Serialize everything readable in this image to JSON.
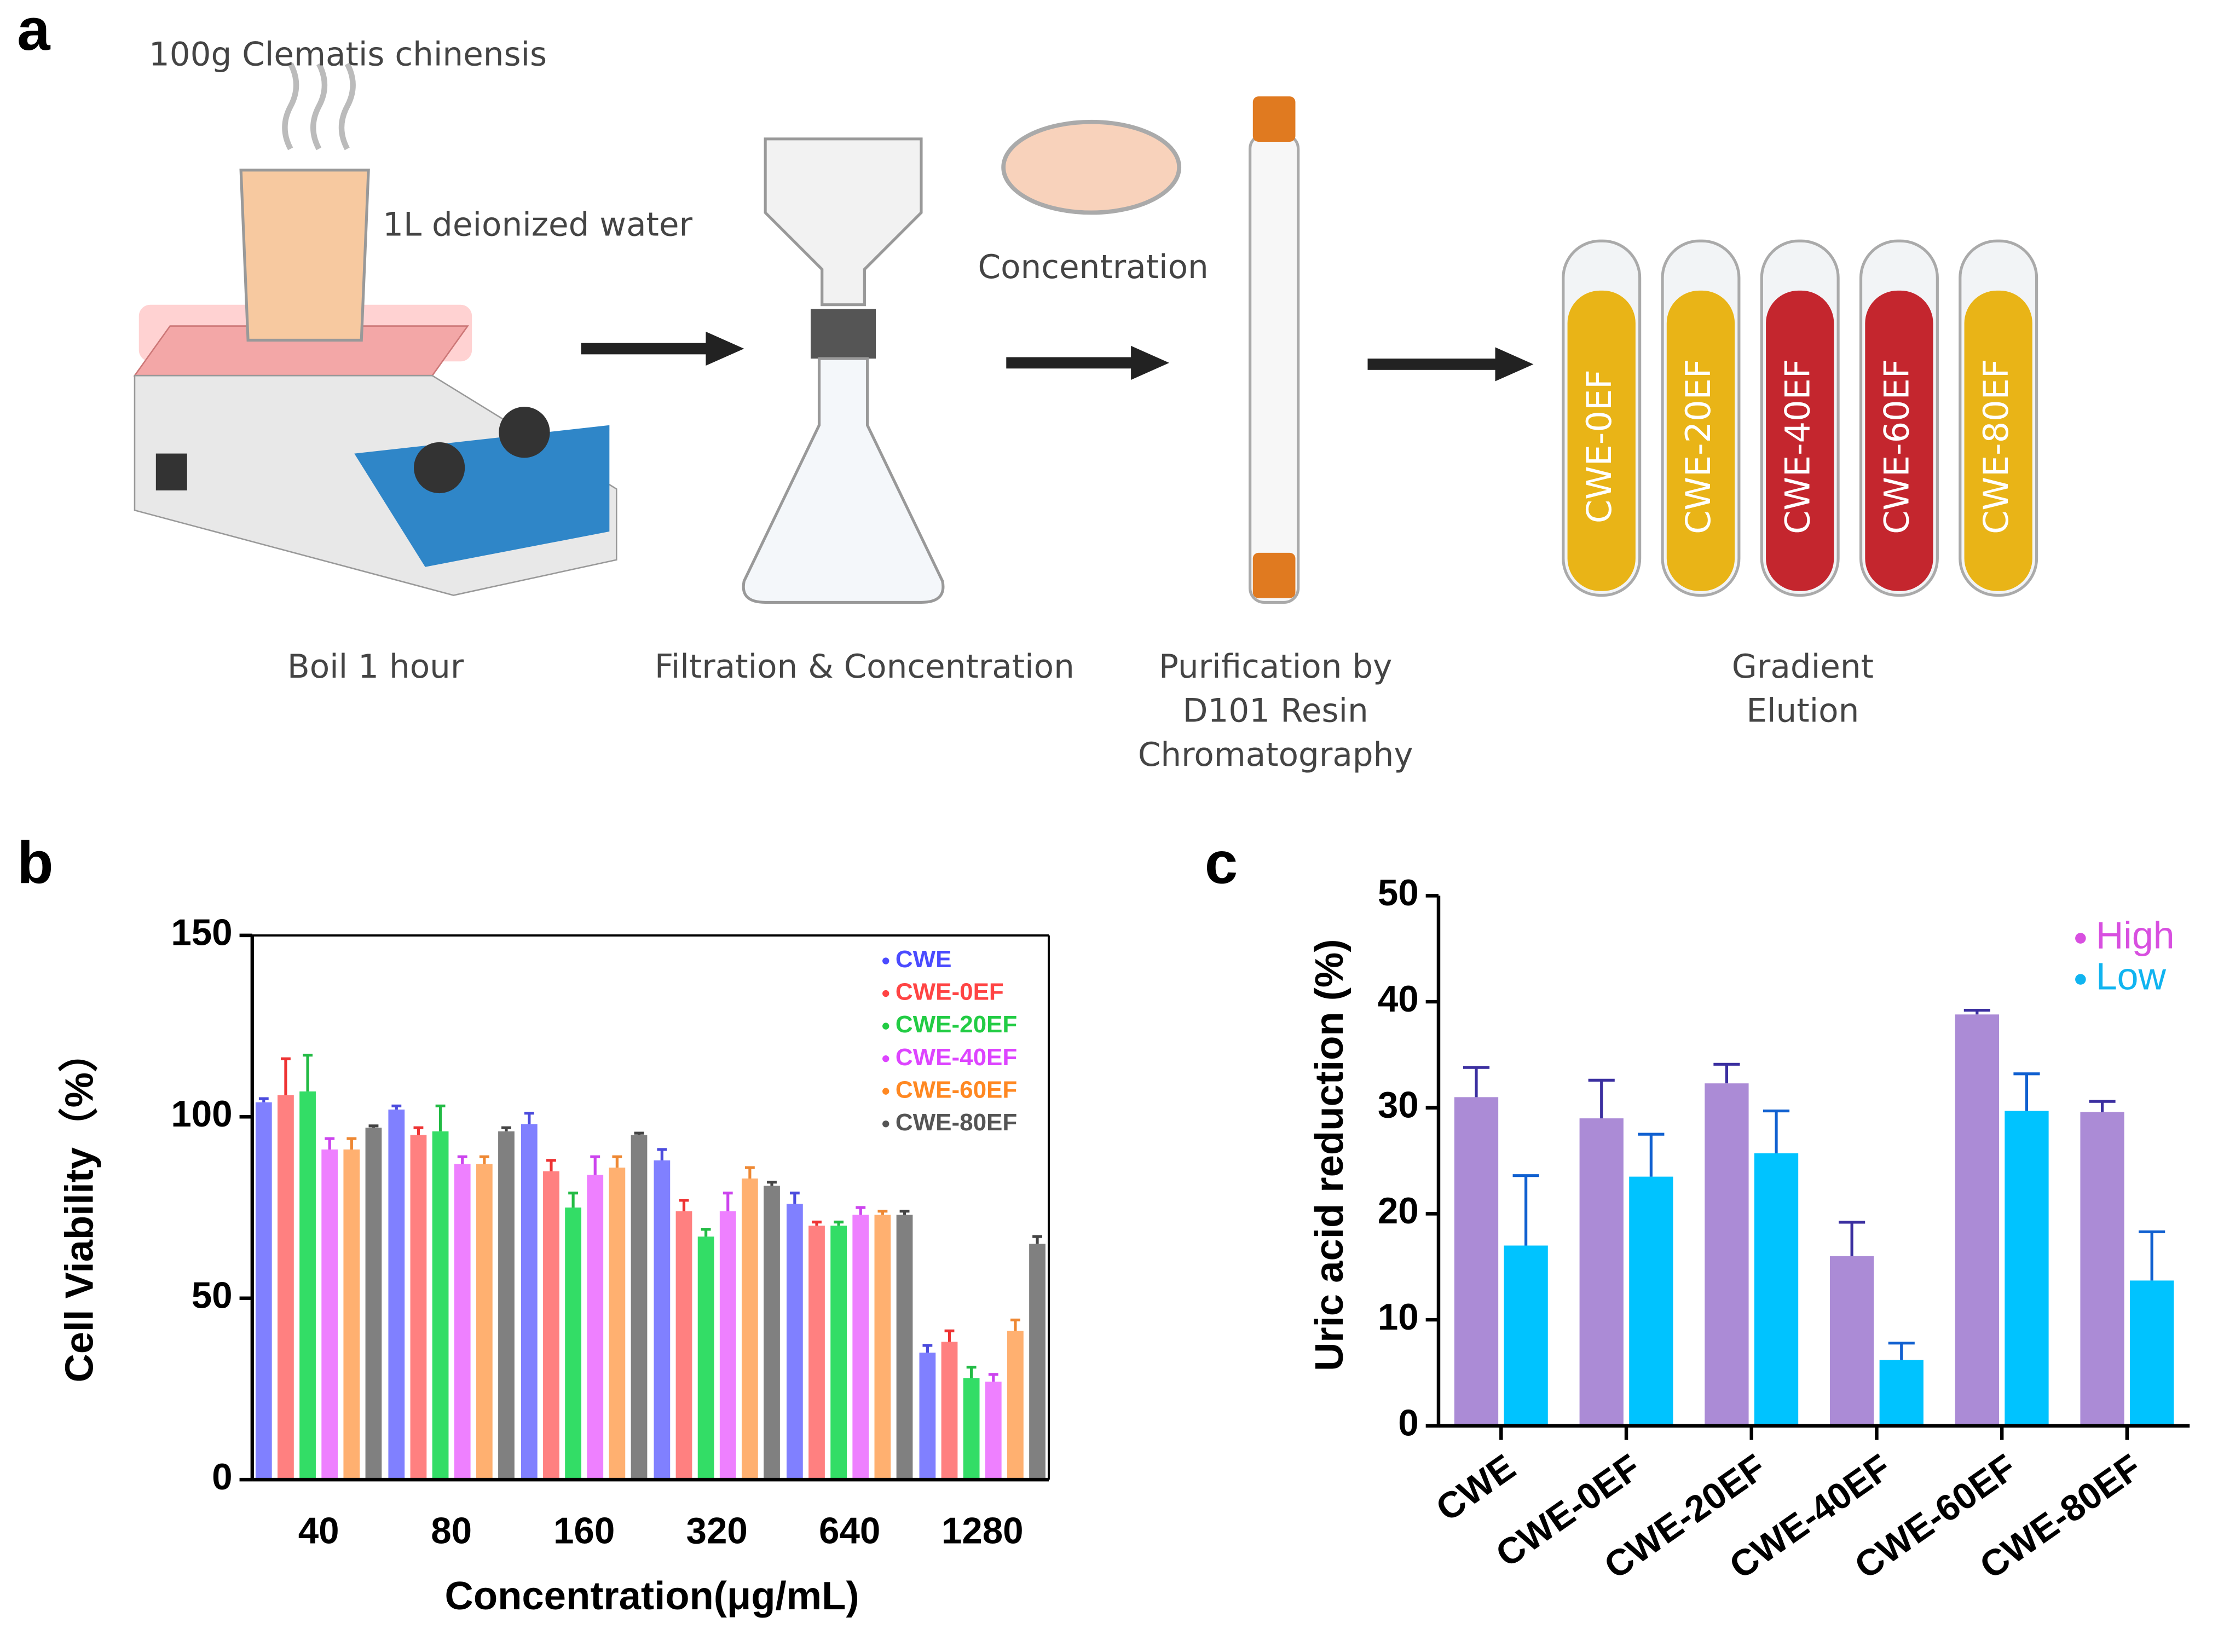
{
  "panel_labels": [
    "a",
    "b",
    "c"
  ],
  "diagram": {
    "ingredient": "100g Clematis chinensis",
    "solvent": "1L deionized water",
    "concentration_label": "Concentration",
    "steps": [
      [
        "Boil 1 hour"
      ],
      [
        "Filtration & Concentration"
      ],
      [
        "Purification by",
        "D101 Resin",
        "Chromatography"
      ],
      [
        "Gradient",
        "Elution"
      ]
    ],
    "tubes": [
      {
        "label": "CWE-0EF",
        "color": "#e9b417"
      },
      {
        "label": "CWE-20EF",
        "color": "#e9b417"
      },
      {
        "label": "CWE-40EF",
        "color": "#c4262e"
      },
      {
        "label": "CWE-60EF",
        "color": "#c4262e"
      },
      {
        "label": "CWE-80EF",
        "color": "#e9b417"
      }
    ]
  },
  "chart_data": [
    {
      "type": "bar",
      "x_label": "Concentration(μg/mL)",
      "y_label": "Cell Viability（%）",
      "categories": [
        "40",
        "80",
        "160",
        "320",
        "640",
        "1280"
      ],
      "ylim": [
        0,
        150
      ],
      "yticks": [
        0,
        50,
        100,
        150
      ],
      "legend": "upper right",
      "series": [
        {
          "name": "CWE",
          "color": "#8080ff",
          "legend_color": "#4b4bff",
          "error_color": "#4b4bdd",
          "values": [
            104,
            102,
            98,
            88,
            76,
            35
          ],
          "errors": [
            1,
            1,
            3,
            3,
            3,
            2
          ]
        },
        {
          "name": "CWE-0EF",
          "color": "#ff8080",
          "legend_color": "#ff4444",
          "error_color": "#ee3333",
          "values": [
            106,
            95,
            85,
            74,
            70,
            38
          ],
          "errors": [
            10,
            2,
            3,
            3,
            1,
            3
          ]
        },
        {
          "name": "CWE-20EF",
          "color": "#33dd66",
          "legend_color": "#22cc44",
          "error_color": "#22bb44",
          "values": [
            107,
            96,
            75,
            67,
            70,
            28
          ],
          "errors": [
            10,
            7,
            4,
            2,
            1,
            3
          ]
        },
        {
          "name": "CWE-40EF",
          "color": "#ee80ff",
          "legend_color": "#dd44ff",
          "error_color": "#cc44ee",
          "values": [
            91,
            87,
            84,
            74,
            73,
            27
          ],
          "errors": [
            3,
            2,
            5,
            5,
            2,
            2
          ]
        },
        {
          "name": "CWE-60EF",
          "color": "#ffb070",
          "legend_color": "#ff8822",
          "error_color": "#ee8833",
          "values": [
            91,
            87,
            86,
            83,
            73,
            41
          ],
          "errors": [
            3,
            2,
            3,
            3,
            1,
            3
          ]
        },
        {
          "name": "CWE-80EF",
          "color": "#808080",
          "legend_color": "#555555",
          "error_color": "#444444",
          "values": [
            97,
            96,
            95,
            81,
            73,
            65
          ],
          "errors": [
            0.5,
            1,
            0.5,
            1,
            1,
            2
          ]
        }
      ]
    },
    {
      "type": "bar",
      "y_label": "Uric acid reduction (%)",
      "categories": [
        "CWE",
        "CWE-0EF",
        "CWE-20EF",
        "CWE-40EF",
        "CWE-60EF",
        "CWE-80EF"
      ],
      "ylim": [
        0,
        50
      ],
      "yticks": [
        0,
        10,
        20,
        30,
        40,
        50
      ],
      "legend": "upper right",
      "series": [
        {
          "name": "High",
          "color": "#ab8bd6",
          "legend_color": "#d84fe0",
          "error_color": "#3b2fa0",
          "values": [
            31,
            29,
            32.3,
            16,
            38.8,
            29.6
          ],
          "errors": [
            2.8,
            3.6,
            1.8,
            3.2,
            0.4,
            1
          ]
        },
        {
          "name": "Low",
          "color": "#00c3ff",
          "legend_color": "#10b4f0",
          "error_color": "#1060d0",
          "values": [
            17,
            23.5,
            25.7,
            6.2,
            29.7,
            13.7
          ],
          "errors": [
            6.6,
            4,
            4,
            1.6,
            3.5,
            4.6
          ]
        }
      ]
    }
  ]
}
